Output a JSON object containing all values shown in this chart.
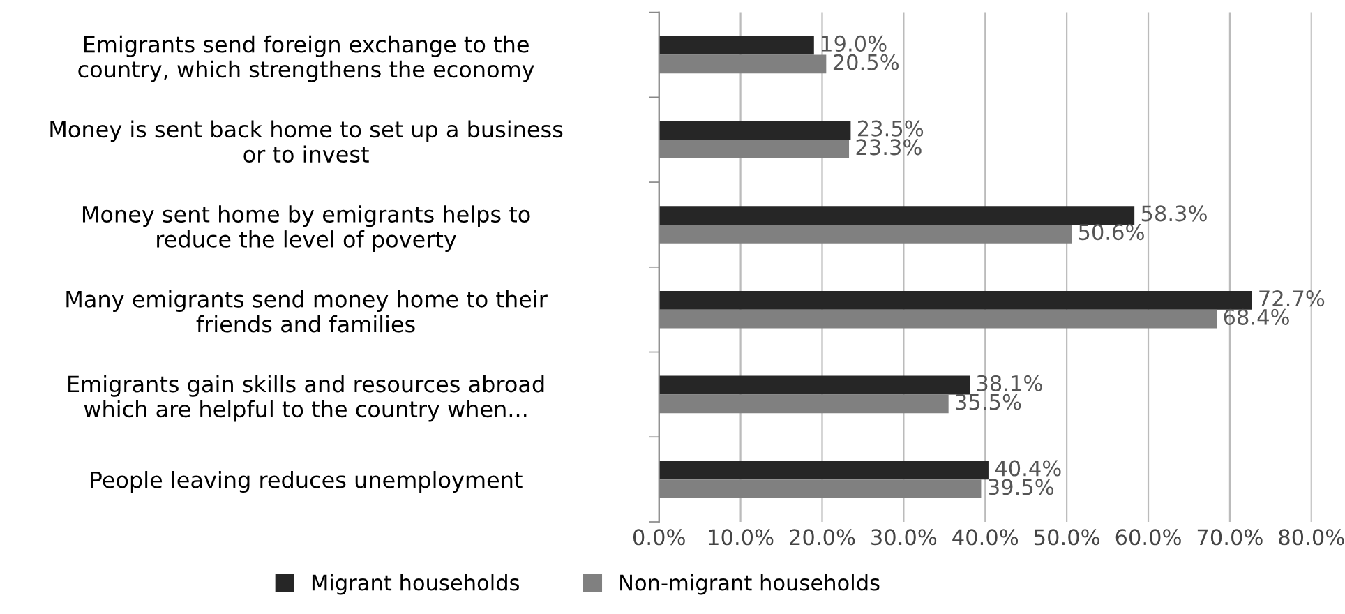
{
  "chart_data": {
    "type": "bar",
    "orientation": "horizontal",
    "categories": [
      "Emigrants send foreign exchange to the\ncountry, which strengthens the economy",
      "Money is sent back home to set up a business\nor to invest",
      "Money sent home by emigrants helps to\nreduce the level of poverty",
      "Many emigrants send money home to their\nfriends and families",
      "Emigrants gain skills and resources abroad\nwhich are helpful to the country when...",
      "People leaving reduces unemployment"
    ],
    "series": [
      {
        "name": "Migrant households",
        "color": "#262626",
        "values": [
          19.0,
          23.5,
          58.3,
          72.7,
          38.1,
          40.4
        ],
        "value_labels": [
          "19.0%",
          "23.5%",
          "58.3%",
          "72.7%",
          "38.1%",
          "40.4%"
        ]
      },
      {
        "name": "Non-migrant households",
        "color": "#808080",
        "values": [
          20.5,
          23.3,
          50.6,
          68.4,
          35.5,
          39.5
        ],
        "value_labels": [
          "20.5%",
          "23.3%",
          "50.6%",
          "68.4%",
          "35.5%",
          "39.5%"
        ]
      }
    ],
    "xlim": [
      0,
      80
    ],
    "xticks": [
      {
        "value": 0,
        "label": "0.0%"
      },
      {
        "value": 10,
        "label": "10.0%"
      },
      {
        "value": 20,
        "label": "20.0%"
      },
      {
        "value": 30,
        "label": "30.0%"
      },
      {
        "value": 40,
        "label": "40.0%"
      },
      {
        "value": 50,
        "label": "50.0%"
      },
      {
        "value": 60,
        "label": "60.0%"
      },
      {
        "value": 70,
        "label": "70.0%"
      },
      {
        "value": 80,
        "label": "80.0%"
      }
    ],
    "grid": "x",
    "legend": "bottom"
  }
}
